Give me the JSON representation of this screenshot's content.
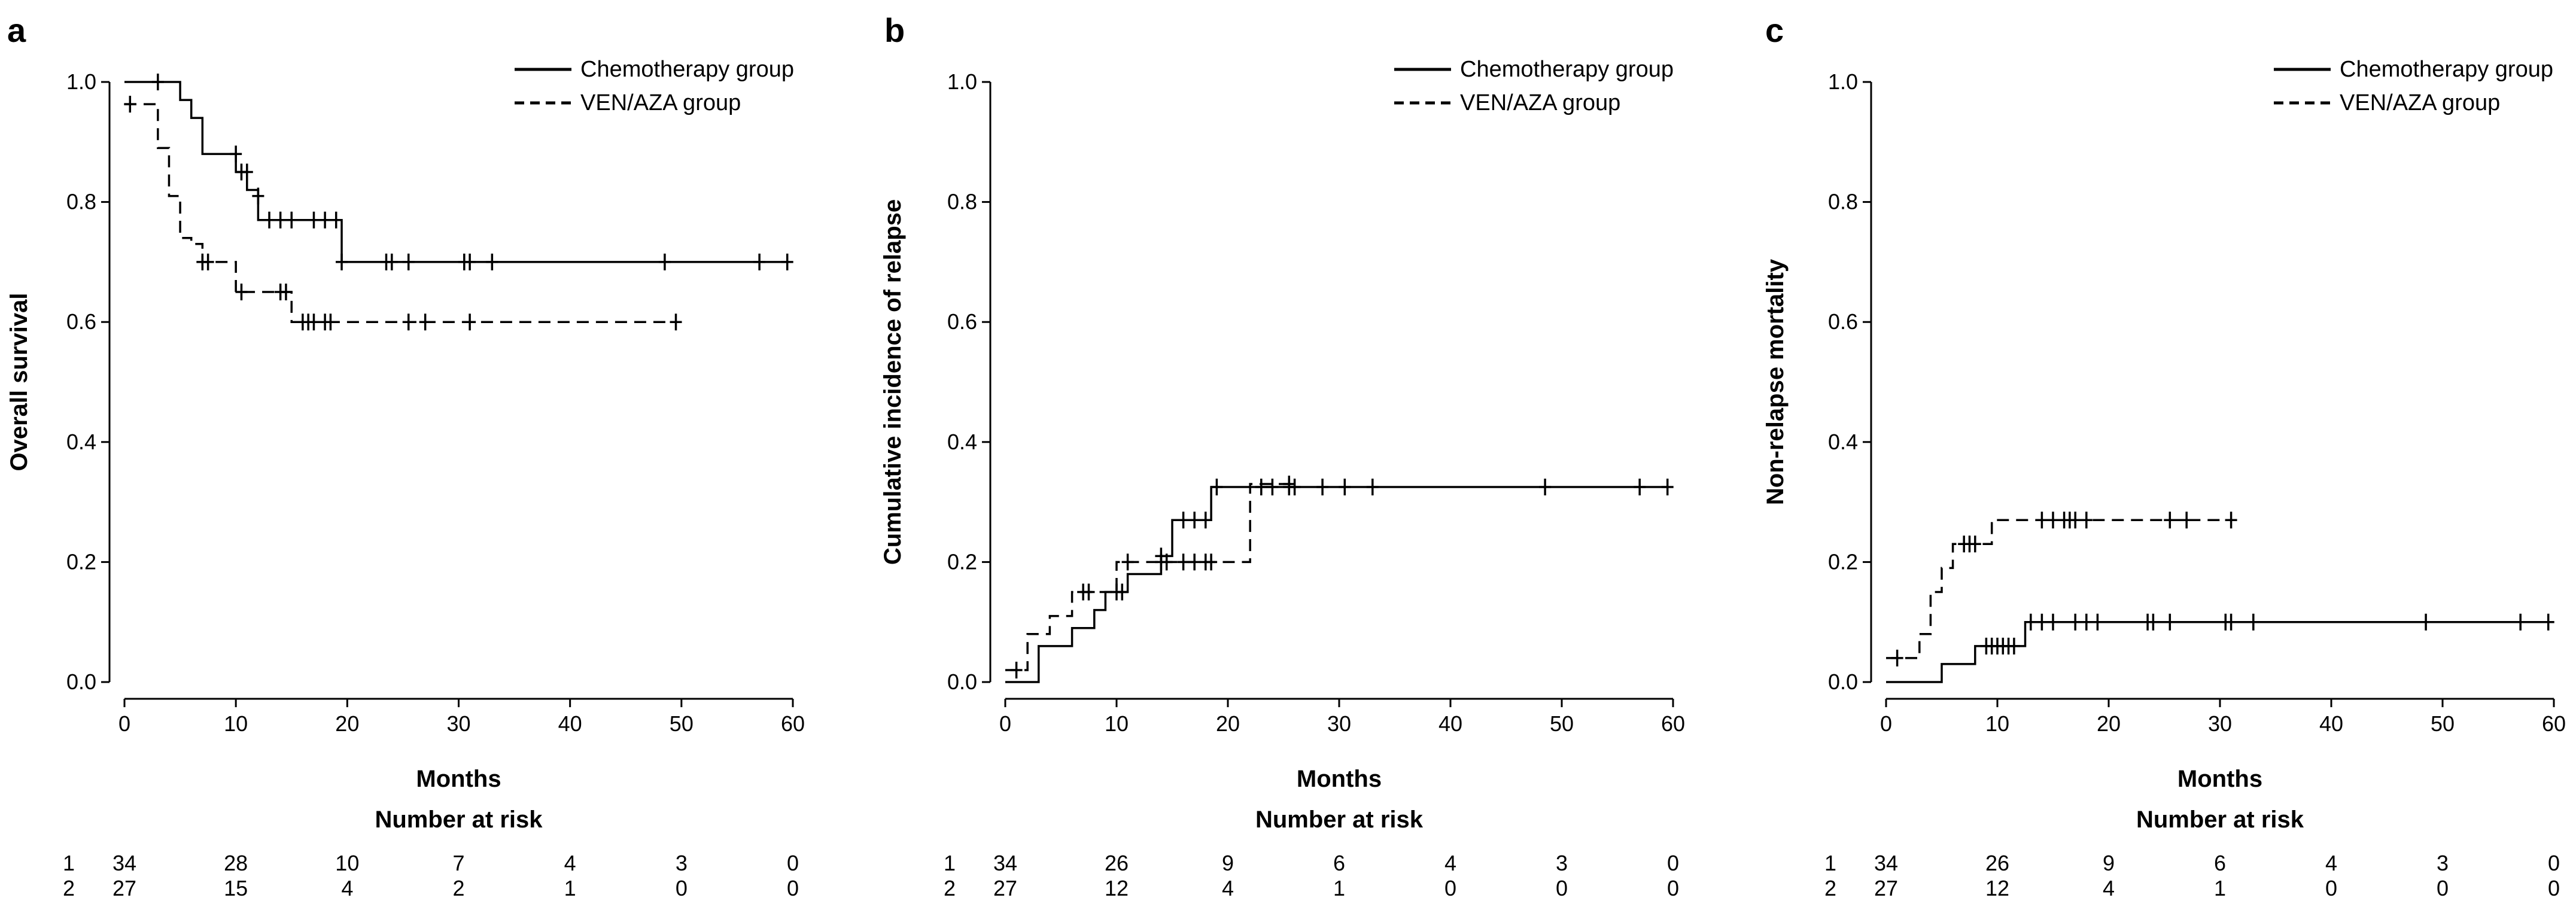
{
  "chart_data": [
    {
      "panel": "a",
      "type": "line",
      "step": true,
      "xlabel": "Months",
      "ylabel": "Overall survival",
      "xlim": [
        0,
        60
      ],
      "ylim": [
        0,
        1
      ],
      "x_ticks": [
        "0",
        "10",
        "20",
        "30",
        "40",
        "50",
        "60"
      ],
      "y_ticks": [
        "0.0",
        "0.2",
        "0.4",
        "0.6",
        "0.8",
        "1.0"
      ],
      "grid": false,
      "legend_position": "top-right",
      "series": [
        {
          "name": "Chemotherapy group",
          "dash": "solid",
          "steps": [
            [
              0,
              1.0
            ],
            [
              5,
              0.97
            ],
            [
              6,
              0.94
            ],
            [
              7,
              0.88
            ],
            [
              9,
              0.88
            ],
            [
              10,
              0.85
            ],
            [
              11,
              0.82
            ],
            [
              12,
              0.77
            ],
            [
              19,
              0.77
            ],
            [
              19.5,
              0.7
            ],
            [
              59.5,
              0.7
            ]
          ],
          "censors": [
            [
              3,
              1.0
            ],
            [
              10,
              0.88
            ],
            [
              10.5,
              0.85
            ],
            [
              11,
              0.85
            ],
            [
              12,
              0.81
            ],
            [
              13,
              0.77
            ],
            [
              14,
              0.77
            ],
            [
              15,
              0.77
            ],
            [
              17,
              0.77
            ],
            [
              18,
              0.77
            ],
            [
              19,
              0.77
            ],
            [
              19.5,
              0.7
            ],
            [
              23.5,
              0.7
            ],
            [
              24,
              0.7
            ],
            [
              25.5,
              0.7
            ],
            [
              30.5,
              0.7
            ],
            [
              31,
              0.7
            ],
            [
              33,
              0.7
            ],
            [
              48.5,
              0.7
            ],
            [
              57,
              0.7
            ],
            [
              59.5,
              0.7
            ]
          ]
        },
        {
          "name": "VEN/AZA group",
          "dash": "dashed",
          "steps": [
            [
              0,
              0.963
            ],
            [
              3,
              0.89
            ],
            [
              4,
              0.81
            ],
            [
              5,
              0.74
            ],
            [
              6,
              0.73
            ],
            [
              7,
              0.7
            ],
            [
              10,
              0.65
            ],
            [
              15,
              0.6
            ],
            [
              50,
              0.6
            ]
          ],
          "censors": [
            [
              0.5,
              0.963
            ],
            [
              7,
              0.7
            ],
            [
              7.5,
              0.7
            ],
            [
              10.5,
              0.65
            ],
            [
              14,
              0.65
            ],
            [
              14.5,
              0.65
            ],
            [
              16,
              0.6
            ],
            [
              16.5,
              0.6
            ],
            [
              17,
              0.6
            ],
            [
              18,
              0.6
            ],
            [
              18.5,
              0.6
            ],
            [
              25.5,
              0.6
            ],
            [
              27,
              0.6
            ],
            [
              31,
              0.6
            ],
            [
              49.5,
              0.6
            ]
          ]
        }
      ],
      "risk_table": {
        "title": "Number at risk",
        "rows": [
          {
            "label": "1",
            "values": [
              "34",
              "28",
              "10",
              "7",
              "4",
              "3",
              "0"
            ]
          },
          {
            "label": "2",
            "values": [
              "27",
              "15",
              "4",
              "2",
              "1",
              "0",
              "0"
            ]
          }
        ]
      }
    },
    {
      "panel": "b",
      "type": "line",
      "step": true,
      "xlabel": "Months",
      "ylabel": "Cumulative incidence of relapse",
      "xlim": [
        0,
        60
      ],
      "ylim": [
        0,
        1
      ],
      "x_ticks": [
        "0",
        "10",
        "20",
        "30",
        "40",
        "50",
        "60"
      ],
      "y_ticks": [
        "0.0",
        "0.2",
        "0.4",
        "0.6",
        "0.8",
        "1.0"
      ],
      "grid": false,
      "legend_position": "top-right",
      "series": [
        {
          "name": "Chemotherapy group",
          "dash": "solid",
          "steps": [
            [
              0,
              0.0
            ],
            [
              3,
              0.06
            ],
            [
              6,
              0.09
            ],
            [
              8,
              0.12
            ],
            [
              9,
              0.15
            ],
            [
              11,
              0.18
            ],
            [
              14,
              0.21
            ],
            [
              15,
              0.27
            ],
            [
              18.5,
              0.325
            ],
            [
              59.5,
              0.325
            ]
          ],
          "censors": [
            [
              7.5,
              0.15
            ],
            [
              10,
              0.15
            ],
            [
              10.5,
              0.15
            ],
            [
              14,
              0.21
            ],
            [
              16,
              0.27
            ],
            [
              17,
              0.27
            ],
            [
              18,
              0.27
            ],
            [
              19,
              0.325
            ],
            [
              23,
              0.325
            ],
            [
              24,
              0.325
            ],
            [
              25.5,
              0.325
            ],
            [
              26,
              0.325
            ],
            [
              28.5,
              0.325
            ],
            [
              30.5,
              0.325
            ],
            [
              33,
              0.325
            ],
            [
              48.5,
              0.325
            ],
            [
              57,
              0.325
            ],
            [
              59.5,
              0.325
            ]
          ]
        },
        {
          "name": "VEN/AZA group",
          "dash": "dashed",
          "steps": [
            [
              0,
              0.02
            ],
            [
              2,
              0.08
            ],
            [
              4,
              0.11
            ],
            [
              6,
              0.15
            ],
            [
              10,
              0.2
            ],
            [
              22,
              0.33
            ],
            [
              26,
              0.33
            ]
          ],
          "censors": [
            [
              1,
              0.02
            ],
            [
              7,
              0.15
            ],
            [
              11,
              0.2
            ],
            [
              14,
              0.2
            ],
            [
              14.5,
              0.2
            ],
            [
              16,
              0.2
            ],
            [
              17,
              0.2
            ],
            [
              18,
              0.2
            ],
            [
              18.5,
              0.2
            ],
            [
              25.5,
              0.33
            ]
          ]
        }
      ],
      "risk_table": {
        "title": "Number at risk",
        "rows": [
          {
            "label": "1",
            "values": [
              "34",
              "26",
              "9",
              "6",
              "4",
              "3",
              "0"
            ]
          },
          {
            "label": "2",
            "values": [
              "27",
              "12",
              "4",
              "1",
              "0",
              "0",
              "0"
            ]
          }
        ]
      }
    },
    {
      "panel": "c",
      "type": "line",
      "step": true,
      "xlabel": "Months",
      "ylabel": "Non-relapse mortality",
      "xlim": [
        0,
        60
      ],
      "ylim": [
        0,
        1
      ],
      "x_ticks": [
        "0",
        "10",
        "20",
        "30",
        "40",
        "50",
        "60"
      ],
      "y_ticks": [
        "0.0",
        "0.2",
        "0.4",
        "0.6",
        "0.8",
        "1.0"
      ],
      "grid": false,
      "legend_position": "top-right",
      "series": [
        {
          "name": "Chemotherapy group",
          "dash": "solid",
          "steps": [
            [
              0,
              0.0
            ],
            [
              5,
              0.03
            ],
            [
              8,
              0.06
            ],
            [
              12,
              0.06
            ],
            [
              12.5,
              0.1
            ],
            [
              59.5,
              0.1
            ]
          ],
          "censors": [
            [
              9,
              0.06
            ],
            [
              9.5,
              0.06
            ],
            [
              10,
              0.06
            ],
            [
              10.5,
              0.06
            ],
            [
              11,
              0.06
            ],
            [
              11.5,
              0.06
            ],
            [
              13,
              0.1
            ],
            [
              14,
              0.1
            ],
            [
              15,
              0.1
            ],
            [
              17,
              0.1
            ],
            [
              18,
              0.1
            ],
            [
              19,
              0.1
            ],
            [
              23.5,
              0.1
            ],
            [
              24,
              0.1
            ],
            [
              25.5,
              0.1
            ],
            [
              30.5,
              0.1
            ],
            [
              31,
              0.1
            ],
            [
              33,
              0.1
            ],
            [
              48.5,
              0.1
            ],
            [
              57,
              0.1
            ],
            [
              59.5,
              0.1
            ]
          ]
        },
        {
          "name": "VEN/AZA group",
          "dash": "dashed",
          "steps": [
            [
              0,
              0.04
            ],
            [
              3,
              0.08
            ],
            [
              4,
              0.15
            ],
            [
              5,
              0.19
            ],
            [
              6,
              0.23
            ],
            [
              9,
              0.23
            ],
            [
              9.5,
              0.27
            ],
            [
              31.5,
              0.27
            ]
          ],
          "censors": [
            [
              1,
              0.04
            ],
            [
              7,
              0.23
            ],
            [
              7.5,
              0.23
            ],
            [
              8,
              0.23
            ],
            [
              14,
              0.27
            ],
            [
              15,
              0.27
            ],
            [
              16,
              0.27
            ],
            [
              16.5,
              0.27
            ],
            [
              17,
              0.27
            ],
            [
              18,
              0.27
            ],
            [
              25.5,
              0.27
            ],
            [
              27,
              0.27
            ],
            [
              31,
              0.27
            ]
          ]
        }
      ],
      "risk_table": {
        "title": "Number at risk",
        "rows": [
          {
            "label": "1",
            "values": [
              "34",
              "26",
              "9",
              "6",
              "4",
              "3",
              "0"
            ]
          },
          {
            "label": "2",
            "values": [
              "27",
              "12",
              "4",
              "1",
              "0",
              "0",
              "0"
            ]
          }
        ]
      }
    }
  ]
}
